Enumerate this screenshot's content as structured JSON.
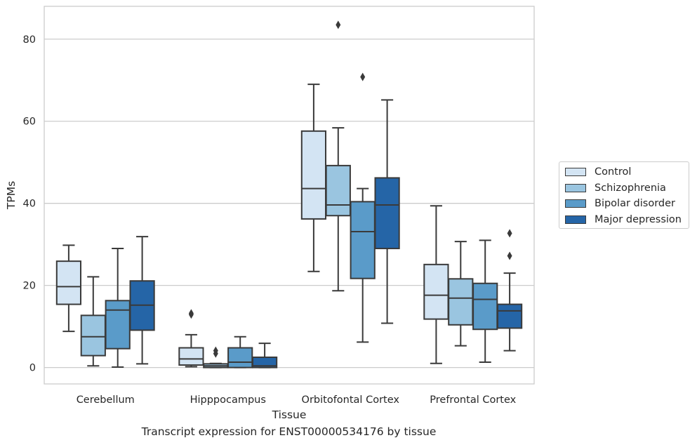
{
  "chart_data": {
    "type": "boxplot",
    "title": "",
    "caption": "Transcript expression for ENST00000534176 by tissue",
    "xlabel": "Tissue",
    "ylabel": "TPMs",
    "ylim": [
      -4,
      88
    ],
    "yticks": [
      0,
      20,
      40,
      60,
      80
    ],
    "grid": "horizontal",
    "legend_position": "right",
    "categories": [
      "Cerebellum",
      "Hipppocampus",
      "Orbitofontal Cortex",
      "Prefrontal Cortex"
    ],
    "series": [
      {
        "name": "Control",
        "color": "#d3e4f3",
        "boxes": [
          {
            "whislo": 8.8,
            "q1": 15.4,
            "med": 19.7,
            "q3": 25.9,
            "whishi": 29.8,
            "fliers": []
          },
          {
            "whislo": 0.2,
            "q1": 0.6,
            "med": 2.1,
            "q3": 4.8,
            "whishi": 8.0,
            "fliers": [
              12.9,
              13.2
            ]
          },
          {
            "whislo": 23.4,
            "q1": 36.2,
            "med": 43.6,
            "q3": 57.6,
            "whishi": 69.0,
            "fliers": []
          },
          {
            "whislo": 1.0,
            "q1": 11.8,
            "med": 17.6,
            "q3": 25.1,
            "whishi": 39.4,
            "fliers": []
          }
        ]
      },
      {
        "name": "Schizophrenia",
        "color": "#9ac5e0",
        "boxes": [
          {
            "whislo": 0.4,
            "q1": 2.9,
            "med": 7.5,
            "q3": 12.7,
            "whishi": 22.1,
            "fliers": []
          },
          {
            "whislo": 0.0,
            "q1": 0.0,
            "med": 0.4,
            "q3": 0.9,
            "whishi": 1.0,
            "fliers": [
              3.4,
              4.1
            ]
          },
          {
            "whislo": 18.7,
            "q1": 37.0,
            "med": 39.6,
            "q3": 49.2,
            "whishi": 58.4,
            "fliers": [
              83.5
            ]
          },
          {
            "whislo": 5.3,
            "q1": 10.4,
            "med": 16.9,
            "q3": 21.6,
            "whishi": 30.7,
            "fliers": []
          }
        ]
      },
      {
        "name": "Bipolar disorder",
        "color": "#5a9bc9",
        "boxes": [
          {
            "whislo": 0.1,
            "q1": 4.6,
            "med": 14.0,
            "q3": 16.3,
            "whishi": 29.0,
            "fliers": []
          },
          {
            "whislo": 0.0,
            "q1": 0.0,
            "med": 1.3,
            "q3": 4.8,
            "whishi": 7.5,
            "fliers": []
          },
          {
            "whislo": 6.2,
            "q1": 21.7,
            "med": 33.1,
            "q3": 40.4,
            "whishi": 43.6,
            "fliers": [
              70.8
            ]
          },
          {
            "whislo": 1.3,
            "q1": 9.3,
            "med": 16.6,
            "q3": 20.5,
            "whishi": 31.0,
            "fliers": []
          }
        ]
      },
      {
        "name": "Major depression",
        "color": "#2565a7",
        "boxes": [
          {
            "whislo": 0.9,
            "q1": 9.1,
            "med": 15.2,
            "q3": 21.1,
            "whishi": 31.9,
            "fliers": []
          },
          {
            "whislo": 0.0,
            "q1": 0.0,
            "med": 0.4,
            "q3": 2.5,
            "whishi": 5.9,
            "fliers": []
          },
          {
            "whislo": 10.8,
            "q1": 29.0,
            "med": 39.6,
            "q3": 46.2,
            "whishi": 65.2,
            "fliers": []
          },
          {
            "whislo": 4.1,
            "q1": 9.6,
            "med": 13.8,
            "q3": 15.4,
            "whishi": 23.0,
            "fliers": [
              27.2,
              32.7
            ]
          }
        ]
      }
    ]
  }
}
